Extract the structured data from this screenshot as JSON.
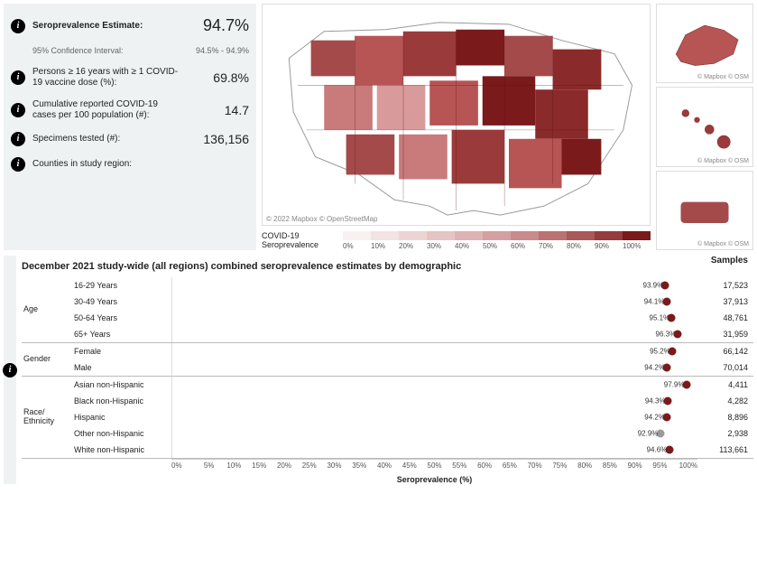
{
  "colors": {
    "dot": "#7a1a1a",
    "dot_alt": "#9a9a9a",
    "panel_bg": "#eef2f2",
    "map_border": "#dddddd"
  },
  "stats": [
    {
      "label": "Seroprevalence Estimate:",
      "value": "94.7%",
      "bold": true
    },
    {
      "label": "95% Confidence Interval:",
      "value": "94.5% - 94.9%",
      "small": true
    },
    {
      "label": "Persons ≥ 16 years with ≥ 1 COVID-19 vaccine dose (%):",
      "value": "69.8%"
    },
    {
      "label": "Cumulative reported COVID-19 cases per 100 population (#):",
      "value": "14.7"
    },
    {
      "label": "Specimens tested (#):",
      "value": "136,156"
    },
    {
      "label": "Counties in study region:",
      "value": ""
    }
  ],
  "map": {
    "attribution_main": "© 2022 Mapbox  © OpenStreetMap",
    "attribution_inset": "© Mapbox © OSM",
    "legend_label": "COVID-19 Seroprevalence",
    "legend_ticks": [
      "0%",
      "10%",
      "20%",
      "30%",
      "40%",
      "50%",
      "60%",
      "70%",
      "80%",
      "90%",
      "100%"
    ],
    "legend_colors": [
      "#f9f1f1",
      "#f3e3e3",
      "#edd4d4",
      "#e6c4c4",
      "#deb3b3",
      "#d4a0a0",
      "#c98b8b",
      "#bb7272",
      "#aa5858",
      "#953c3c",
      "#7a1a1a"
    ]
  },
  "section_title": "December 2021 study-wide (all regions) combined seroprevalence estimates by demographic",
  "samples_header": "Samples",
  "axis_label": "Seroprevalence (%)",
  "axis_ticks": [
    "0%",
    "5%",
    "10%",
    "15%",
    "20%",
    "25%",
    "30%",
    "35%",
    "40%",
    "45%",
    "50%",
    "55%",
    "60%",
    "65%",
    "70%",
    "75%",
    "80%",
    "85%",
    "90%",
    "95%",
    "100%"
  ],
  "groups": [
    {
      "name": "Age",
      "rows": [
        {
          "label": "16-29 Years",
          "value": 93.9,
          "value_text": "93.9%",
          "samples": "17,523"
        },
        {
          "label": "30-49 Years",
          "value": 94.1,
          "value_text": "94.1%",
          "samples": "37,913"
        },
        {
          "label": "50-64 Years",
          "value": 95.1,
          "value_text": "95.1%",
          "samples": "48,761"
        },
        {
          "label": "65+ Years",
          "value": 96.3,
          "value_text": "96.3%",
          "samples": "31,959"
        }
      ]
    },
    {
      "name": "Gender",
      "rows": [
        {
          "label": "Female",
          "value": 95.2,
          "value_text": "95.2%",
          "samples": "66,142"
        },
        {
          "label": "Male",
          "value": 94.2,
          "value_text": "94.2%",
          "samples": "70,014"
        }
      ]
    },
    {
      "name": "Race/ Ethnicity",
      "rows": [
        {
          "label": "Asian non-Hispanic",
          "value": 97.9,
          "value_text": "97.9%",
          "samples": "4,411"
        },
        {
          "label": "Black non-Hispanic",
          "value": 94.3,
          "value_text": "94.3%",
          "samples": "4,282"
        },
        {
          "label": "Hispanic",
          "value": 94.2,
          "value_text": "94.2%",
          "samples": "8,896"
        },
        {
          "label": "Other non-Hispanic",
          "value": 92.9,
          "value_text": "92.9%",
          "samples": "2,938",
          "alt_color": true
        },
        {
          "label": "White non-Hispanic",
          "value": 94.6,
          "value_text": "94.6%",
          "samples": "113,661"
        }
      ]
    }
  ]
}
